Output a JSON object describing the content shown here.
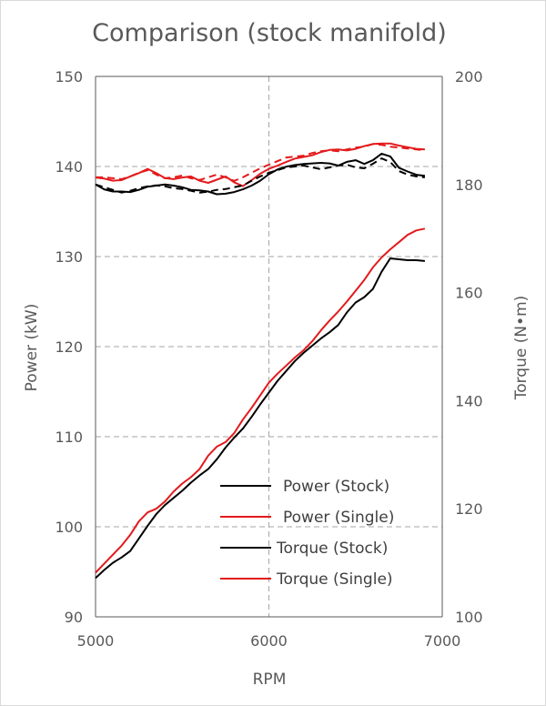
{
  "chart_data": {
    "type": "line",
    "title": "Comparison (stock manifold)",
    "xlabel": "RPM",
    "ylabel": "Power (kW)",
    "y2label": "Torque (N•m)",
    "xlim": [
      5000,
      7000
    ],
    "ylim": [
      90,
      150
    ],
    "y2lim": [
      100,
      200
    ],
    "x_ticks": [
      "5000",
      "6000",
      "7000"
    ],
    "y_ticks": [
      "90",
      "100",
      "110",
      "120",
      "130",
      "140",
      "150"
    ],
    "y2_ticks": [
      "100",
      "120",
      "140",
      "160",
      "180",
      "200"
    ],
    "grid": true,
    "legend_position": "bottom-right",
    "colors": {
      "stock": "#000000",
      "single": "#e31a1c",
      "grid": "#a6a6a6",
      "text": "#595959"
    },
    "series": [
      {
        "name": "Power (Stock)",
        "axis": "left",
        "style": "solid",
        "color": "#000000",
        "x": [
          5000,
          5050,
          5100,
          5150,
          5200,
          5250,
          5300,
          5350,
          5400,
          5450,
          5500,
          5550,
          5600,
          5650,
          5700,
          5750,
          5800,
          5850,
          5900,
          5950,
          6000,
          6050,
          6100,
          6150,
          6200,
          6250,
          6300,
          6350,
          6400,
          6450,
          6500,
          6550,
          6600,
          6650,
          6700,
          6750,
          6800,
          6850,
          6900
        ],
        "values": [
          94.3,
          95.2,
          96.0,
          96.6,
          97.3,
          98.7,
          100.1,
          101.4,
          102.4,
          103.2,
          104.0,
          104.9,
          105.7,
          106.4,
          107.5,
          108.8,
          109.9,
          110.9,
          112.2,
          113.6,
          114.9,
          116.2,
          117.3,
          118.4,
          119.3,
          120.1,
          120.9,
          121.6,
          122.4,
          123.8,
          124.9,
          125.5,
          126.4,
          128.3,
          129.8,
          129.7,
          129.6,
          129.6,
          129.5
        ]
      },
      {
        "name": "Power (Single)",
        "axis": "left",
        "style": "solid",
        "color": "#e31a1c",
        "x": [
          5000,
          5050,
          5100,
          5150,
          5200,
          5250,
          5300,
          5350,
          5400,
          5450,
          5500,
          5550,
          5600,
          5650,
          5700,
          5750,
          5800,
          5850,
          5900,
          5950,
          6000,
          6050,
          6100,
          6150,
          6200,
          6250,
          6300,
          6350,
          6400,
          6450,
          6500,
          6550,
          6600,
          6650,
          6700,
          6750,
          6800,
          6850,
          6900
        ],
        "values": [
          94.9,
          95.9,
          96.9,
          97.9,
          99.1,
          100.6,
          101.6,
          102.0,
          102.8,
          103.9,
          104.8,
          105.5,
          106.4,
          107.9,
          108.9,
          109.4,
          110.4,
          111.9,
          113.2,
          114.6,
          116.0,
          117.0,
          117.9,
          118.8,
          119.6,
          120.6,
          121.8,
          122.9,
          123.9,
          125.0,
          126.2,
          127.4,
          128.8,
          129.9,
          130.8,
          131.6,
          132.4,
          132.9,
          133.1
        ]
      },
      {
        "name": "Torque (Stock)",
        "axis": "right",
        "style": "solid",
        "color": "#000000",
        "x": [
          5000,
          5050,
          5100,
          5150,
          5200,
          5250,
          5300,
          5350,
          5400,
          5450,
          5500,
          5550,
          5600,
          5650,
          5700,
          5750,
          5800,
          5850,
          5900,
          5950,
          6000,
          6050,
          6100,
          6150,
          6200,
          6250,
          6300,
          6350,
          6400,
          6450,
          6500,
          6550,
          6600,
          6650,
          6700,
          6750,
          6800,
          6850,
          6900
        ],
        "values": [
          180.0,
          179.1,
          178.7,
          178.7,
          178.6,
          179.0,
          179.6,
          179.8,
          180.0,
          179.8,
          179.5,
          179.0,
          178.9,
          178.7,
          178.2,
          178.3,
          178.6,
          179.1,
          179.8,
          180.7,
          181.9,
          182.8,
          183.3,
          183.6,
          183.8,
          183.9,
          184.0,
          183.9,
          183.5,
          184.2,
          184.5,
          183.8,
          184.5,
          185.7,
          185.2,
          183.1,
          182.4,
          181.8,
          181.6
        ]
      },
      {
        "name": "Torque (Single)",
        "axis": "right",
        "style": "solid",
        "color": "#e31a1c",
        "x": [
          5000,
          5050,
          5100,
          5150,
          5200,
          5250,
          5300,
          5350,
          5400,
          5450,
          5500,
          5550,
          5600,
          5650,
          5700,
          5750,
          5800,
          5850,
          5900,
          5950,
          6000,
          6050,
          6100,
          6150,
          6200,
          6250,
          6300,
          6350,
          6400,
          6450,
          6500,
          6550,
          6600,
          6650,
          6700,
          6750,
          6800,
          6850,
          6900
        ],
        "values": [
          181.3,
          181.1,
          180.7,
          180.8,
          181.5,
          182.1,
          182.9,
          182.1,
          181.2,
          181.0,
          181.3,
          181.5,
          180.7,
          180.3,
          180.9,
          181.5,
          180.4,
          179.7,
          180.8,
          182.0,
          182.9,
          183.5,
          184.2,
          184.8,
          185.1,
          185.4,
          186.0,
          186.4,
          186.5,
          186.3,
          186.6,
          187.1,
          187.5,
          187.6,
          187.6,
          187.2,
          186.9,
          186.6,
          186.5
        ]
      },
      {
        "name": "",
        "axis": "left",
        "style": "dashed",
        "color": "#000000",
        "legend": false,
        "x": [
          5000,
          5050,
          5100,
          5150,
          5200,
          5250,
          5300,
          5350,
          5400,
          5450,
          5500,
          5550,
          5600,
          5650,
          5700,
          5750,
          5800,
          5850,
          5900,
          5950,
          6000,
          6050,
          6100,
          6150,
          6200,
          6250,
          6300,
          6350,
          6400,
          6450,
          6500,
          6550,
          6600,
          6650,
          6700,
          6750,
          6800,
          6850,
          6900
        ],
        "values": [
          138.0,
          137.7,
          137.4,
          137.1,
          137.3,
          137.6,
          137.8,
          137.9,
          137.8,
          137.6,
          137.5,
          137.3,
          137.1,
          137.2,
          137.4,
          137.5,
          137.7,
          137.9,
          138.4,
          138.9,
          139.3,
          139.6,
          139.9,
          140.0,
          140.1,
          139.9,
          139.7,
          139.9,
          140.1,
          140.2,
          139.9,
          139.8,
          140.3,
          140.9,
          140.5,
          139.5,
          139.1,
          138.9,
          138.8
        ]
      },
      {
        "name": "",
        "axis": "left",
        "style": "dashed",
        "color": "#e31a1c",
        "legend": false,
        "x": [
          5000,
          5050,
          5100,
          5150,
          5200,
          5250,
          5300,
          5350,
          5400,
          5450,
          5500,
          5550,
          5600,
          5650,
          5700,
          5750,
          5800,
          5850,
          5900,
          5950,
          6000,
          6050,
          6100,
          6150,
          6200,
          6250,
          6300,
          6350,
          6400,
          6450,
          6500,
          6550,
          6600,
          6650,
          6700,
          6750,
          6800,
          6850,
          6900
        ],
        "values": [
          138.8,
          138.8,
          138.7,
          138.6,
          138.9,
          139.3,
          139.6,
          139.1,
          138.7,
          138.8,
          139.0,
          138.7,
          138.5,
          138.8,
          139.1,
          138.8,
          138.4,
          138.8,
          139.3,
          139.8,
          140.2,
          140.6,
          141.0,
          141.1,
          141.2,
          141.5,
          141.7,
          141.8,
          141.7,
          141.9,
          142.1,
          142.2,
          142.5,
          142.4,
          142.2,
          142.1,
          142.0,
          141.9,
          141.8
        ]
      }
    ]
  }
}
